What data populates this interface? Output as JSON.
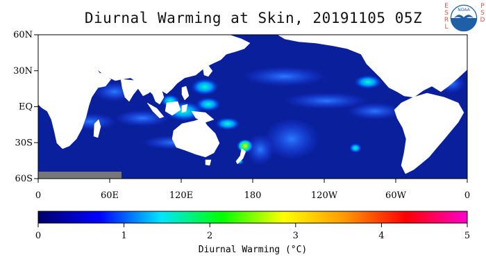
{
  "title": "Diurnal Warming at Skin, 20191105 05Z",
  "logo": {
    "left_letters": [
      "E",
      "S",
      "R",
      "L"
    ],
    "right_letters": [
      "P",
      "S",
      "D"
    ],
    "emblem_text": "NOAA",
    "icon": "noaa-seagull-logo"
  },
  "map": {
    "projection": "cylindrical-equidistant",
    "lon_range": [
      0,
      360
    ],
    "lat_range": [
      -60,
      60
    ],
    "lat_ticks": [
      {
        "value": 60,
        "label": "60N"
      },
      {
        "value": 30,
        "label": "30N"
      },
      {
        "value": 0,
        "label": "EQ"
      },
      {
        "value": -30,
        "label": "30S"
      },
      {
        "value": -60,
        "label": "60S"
      }
    ],
    "lon_ticks": [
      {
        "value": 0,
        "label": "0"
      },
      {
        "value": 60,
        "label": "60E"
      },
      {
        "value": 120,
        "label": "120E"
      },
      {
        "value": 180,
        "label": "180"
      },
      {
        "value": 240,
        "label": "120W"
      },
      {
        "value": 300,
        "label": "60W"
      },
      {
        "value": 360,
        "label": "0"
      }
    ],
    "colors": {
      "ocean": "#0a1f9c",
      "land": "#ffffff",
      "missing": "#777777"
    }
  },
  "colorbar": {
    "label": "Diurnal Warming (°C)",
    "range": [
      0,
      5
    ],
    "ticks": [
      {
        "value": 0,
        "label": "0"
      },
      {
        "value": 1,
        "label": "1"
      },
      {
        "value": 2,
        "label": "2"
      },
      {
        "value": 3,
        "label": "3"
      },
      {
        "value": 4,
        "label": "4"
      },
      {
        "value": 5,
        "label": "5"
      }
    ],
    "stops": [
      "#000066",
      "#0000ff",
      "#00e5ff",
      "#00ff00",
      "#ffff00",
      "#ff9900",
      "#ff0000",
      "#ff00cc"
    ]
  }
}
